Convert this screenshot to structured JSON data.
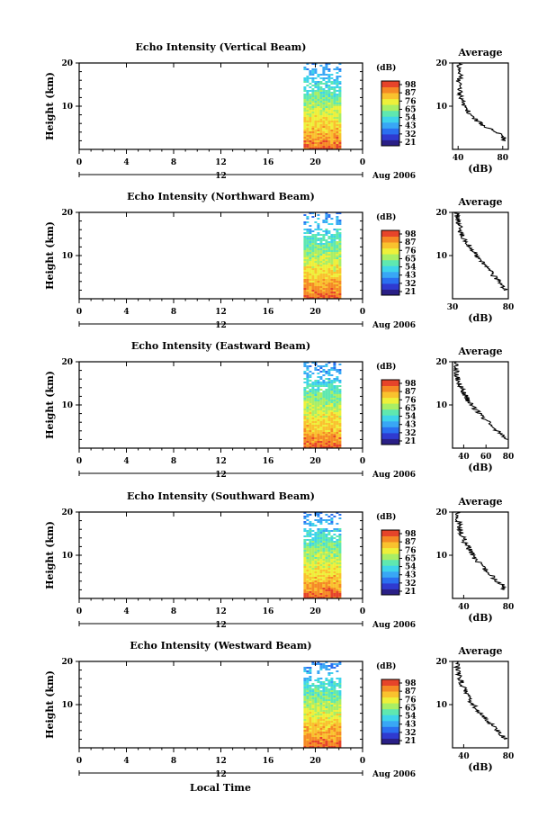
{
  "figure": {
    "x_axis_label": "Local Time",
    "date_label": "Aug 2006",
    "height_label": "Height (km)",
    "colorbar_unit": "(dB)",
    "avg_title": "Average",
    "avg_xlabel": "(dB)",
    "mid_tick_label": "12",
    "colormap": [
      "#2a1f86",
      "#2f3ad0",
      "#2a6ff0",
      "#39a7f5",
      "#3fd4ea",
      "#5fe8b0",
      "#a9ee65",
      "#eef03a",
      "#f9c22e",
      "#f58a25",
      "#e6442a"
    ]
  },
  "chart_data": [
    {
      "type": "heatmap",
      "title": "Echo Intensity (Vertical Beam)",
      "xlim": [
        0,
        24
      ],
      "x_ticks": [
        "0",
        "4",
        "8",
        "12",
        "16",
        "20",
        "0"
      ],
      "ylim": [
        0,
        20
      ],
      "y_ticks": [
        "20",
        "10"
      ],
      "data_time_range": [
        19,
        22
      ],
      "colorbar_ticks": [
        "98",
        "87",
        "76",
        "65",
        "54",
        "43",
        "32",
        "21"
      ],
      "average": {
        "xlim": [
          35,
          85
        ],
        "x_ticks": [
          "40",
          "80"
        ],
        "ylim": [
          0,
          20
        ],
        "y_ticks": [
          "20",
          "10"
        ],
        "height": [
          2,
          3,
          4,
          5,
          6,
          7,
          8,
          9,
          10,
          11,
          12,
          13,
          14,
          15,
          16,
          17,
          18,
          19,
          20
        ],
        "db": [
          82,
          80,
          74,
          66,
          60,
          55,
          52,
          48,
          46,
          44,
          43,
          42,
          41,
          42,
          40,
          43,
          40,
          41,
          41
        ]
      }
    },
    {
      "type": "heatmap",
      "title": "Echo Intensity (Northward Beam)",
      "xlim": [
        0,
        24
      ],
      "x_ticks": [
        "0",
        "4",
        "8",
        "12",
        "16",
        "20",
        "0"
      ],
      "ylim": [
        0,
        20
      ],
      "y_ticks": [
        "20",
        "10"
      ],
      "data_time_range": [
        19,
        22
      ],
      "colorbar_ticks": [
        "98",
        "87",
        "76",
        "65",
        "54",
        "43",
        "32",
        "21"
      ],
      "average": {
        "xlim": [
          30,
          80
        ],
        "x_ticks": [
          "30",
          "80"
        ],
        "ylim": [
          0,
          20
        ],
        "y_ticks": [
          "20",
          "10"
        ],
        "height": [
          2,
          3,
          4,
          5,
          6,
          7,
          8,
          9,
          10,
          11,
          12,
          13,
          14,
          15,
          16,
          17,
          18,
          19,
          20
        ],
        "db": [
          78,
          75,
          72,
          68,
          65,
          62,
          58,
          55,
          52,
          49,
          46,
          43,
          40,
          38,
          37,
          36,
          35,
          34,
          34
        ]
      }
    },
    {
      "type": "heatmap",
      "title": "Echo Intensity (Eastward Beam)",
      "xlim": [
        0,
        24
      ],
      "x_ticks": [
        "0",
        "4",
        "8",
        "12",
        "16",
        "20",
        "0"
      ],
      "ylim": [
        0,
        20
      ],
      "y_ticks": [
        "20",
        "10"
      ],
      "data_time_range": [
        19,
        22
      ],
      "colorbar_ticks": [
        "98",
        "87",
        "76",
        "65",
        "54",
        "43",
        "32",
        "21"
      ],
      "average": {
        "xlim": [
          30,
          80
        ],
        "x_ticks": [
          "40",
          "60",
          "80"
        ],
        "ylim": [
          0,
          20
        ],
        "y_ticks": [
          "20",
          "10"
        ],
        "height": [
          2,
          3,
          4,
          5,
          6,
          7,
          8,
          9,
          10,
          11,
          12,
          13,
          14,
          15,
          16,
          17,
          18,
          19,
          20
        ],
        "db": [
          78,
          74,
          70,
          67,
          62,
          58,
          55,
          50,
          47,
          44,
          42,
          40,
          38,
          36,
          35,
          34,
          33,
          33,
          34
        ]
      }
    },
    {
      "type": "heatmap",
      "title": "Echo Intensity (Southward Beam)",
      "xlim": [
        0,
        24
      ],
      "x_ticks": [
        "0",
        "4",
        "8",
        "12",
        "16",
        "20",
        "0"
      ],
      "ylim": [
        0,
        20
      ],
      "y_ticks": [
        "20",
        "10"
      ],
      "data_time_range": [
        19,
        22
      ],
      "colorbar_ticks": [
        "98",
        "87",
        "76",
        "65",
        "54",
        "43",
        "32",
        "21"
      ],
      "average": {
        "xlim": [
          30,
          80
        ],
        "x_ticks": [
          "40",
          "80"
        ],
        "ylim": [
          0,
          20
        ],
        "y_ticks": [
          "20",
          "10"
        ],
        "height": [
          2,
          3,
          4,
          5,
          6,
          7,
          8,
          9,
          10,
          11,
          12,
          13,
          14,
          15,
          16,
          17,
          18,
          19,
          20
        ],
        "db": [
          77,
          75,
          70,
          66,
          62,
          58,
          55,
          51,
          48,
          46,
          44,
          41,
          40,
          38,
          37,
          36,
          35,
          34,
          34
        ]
      }
    },
    {
      "type": "heatmap",
      "title": "Echo Intensity (Westward Beam)",
      "xlim": [
        0,
        24
      ],
      "x_ticks": [
        "0",
        "4",
        "8",
        "12",
        "16",
        "20",
        "0"
      ],
      "ylim": [
        0,
        20
      ],
      "y_ticks": [
        "20",
        "10"
      ],
      "data_time_range": [
        19,
        22
      ],
      "colorbar_ticks": [
        "98",
        "87",
        "76",
        "65",
        "54",
        "43",
        "32",
        "21"
      ],
      "average": {
        "xlim": [
          30,
          80
        ],
        "x_ticks": [
          "40",
          "80"
        ],
        "ylim": [
          0,
          20
        ],
        "y_ticks": [
          "20",
          "10"
        ],
        "height": [
          2,
          3,
          4,
          5,
          6,
          7,
          8,
          9,
          10,
          11,
          12,
          13,
          14,
          15,
          16,
          17,
          18,
          19,
          20
        ],
        "db": [
          78,
          74,
          70,
          67,
          62,
          58,
          55,
          52,
          48,
          46,
          44,
          42,
          40,
          38,
          37,
          36,
          35,
          34,
          34
        ]
      }
    }
  ]
}
